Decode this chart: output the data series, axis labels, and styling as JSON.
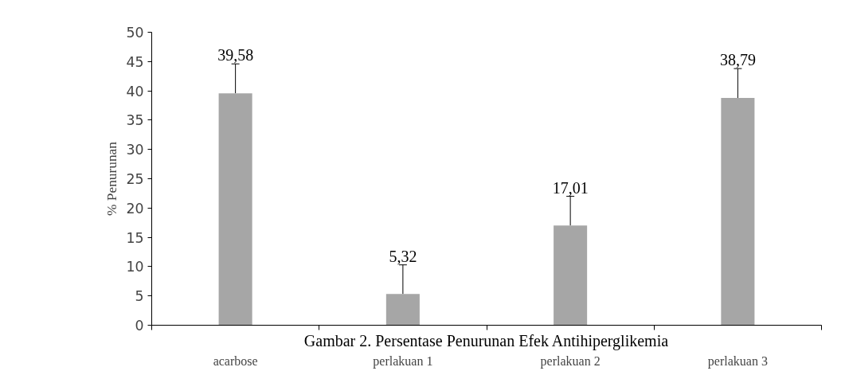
{
  "chart_data": {
    "type": "bar",
    "ylabel": "% Penurunan",
    "categories": [
      "acarbose",
      "perlakuan 1",
      "perlakuan 2",
      "perlakuan 3"
    ],
    "values": [
      39.58,
      5.32,
      17.01,
      38.79
    ],
    "color": "#a6a6a6",
    "errors": [
      [
        39.58,
        44.6
      ],
      [
        5.32,
        10.3
      ],
      [
        17.01,
        22.0
      ],
      [
        38.79,
        43.8
      ]
    ],
    "value_labels": [
      "39,58",
      "5,32",
      "17,01",
      "38,79"
    ],
    "ylim": [
      0,
      50
    ],
    "yticks": [
      0,
      5,
      10,
      15,
      20,
      25,
      30,
      35,
      40,
      45,
      50
    ],
    "grid": false,
    "annotations": [
      "Gambar 2. Persentase Penurunan Efek Antihiperglikemia"
    ]
  }
}
